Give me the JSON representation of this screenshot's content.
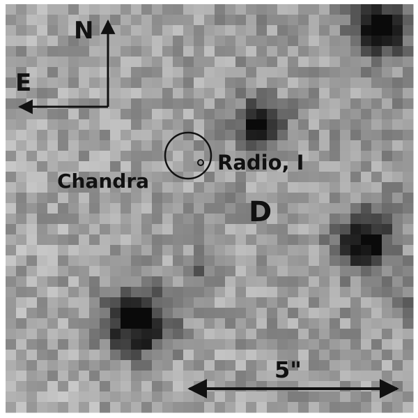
{
  "image": {
    "kind": "grayscale pixelated astronomical field",
    "frame_color": "#ffffff"
  },
  "labels": {
    "north": "N",
    "east": "E",
    "chandra": "Chandra",
    "radio": "Radio, I",
    "source": "D",
    "scale": "5\""
  },
  "colors": {
    "ink": "#111111"
  }
}
